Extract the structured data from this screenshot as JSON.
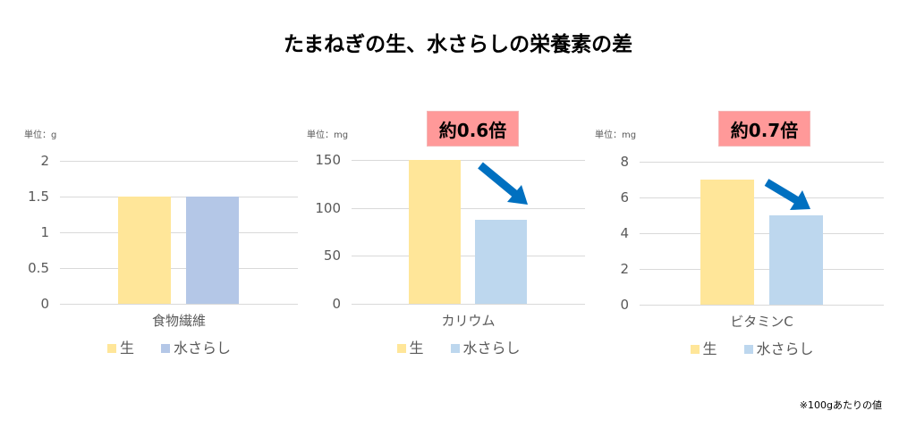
{
  "title": "たまねぎの生、水さらしの栄養素の差",
  "note": "※100gあたりの値",
  "colors": {
    "raw": "#ffe699",
    "soaked_fiber": "#b4c7e7",
    "soaked": "#bdd7ee",
    "badge": "#ff9999",
    "arrow": "#0070c0"
  },
  "chart_data": [
    {
      "type": "bar",
      "unit_label": "単位：g",
      "categories": [
        "食物繊維"
      ],
      "ylim": [
        0,
        2
      ],
      "yticks": [
        "0",
        "0.5",
        "1",
        "1.5",
        "2"
      ],
      "series": [
        {
          "name": "生",
          "values": [
            1.5
          ]
        },
        {
          "name": "水さらし",
          "values": [
            1.5
          ]
        }
      ],
      "badge": null
    },
    {
      "type": "bar",
      "unit_label": "単位：mg",
      "categories": [
        "カリウム"
      ],
      "ylim": [
        0,
        150
      ],
      "yticks": [
        "0",
        "50",
        "100",
        "150"
      ],
      "series": [
        {
          "name": "生",
          "values": [
            150
          ]
        },
        {
          "name": "水さらし",
          "values": [
            88
          ]
        }
      ],
      "badge": "約0.6倍"
    },
    {
      "type": "bar",
      "unit_label": "単位：mg",
      "categories": [
        "ビタミンC"
      ],
      "ylim": [
        0,
        8
      ],
      "yticks": [
        "0",
        "2",
        "4",
        "6",
        "8"
      ],
      "series": [
        {
          "name": "生",
          "values": [
            7
          ]
        },
        {
          "name": "水さらし",
          "values": [
            5
          ]
        }
      ],
      "badge": "約0.7倍"
    }
  ]
}
